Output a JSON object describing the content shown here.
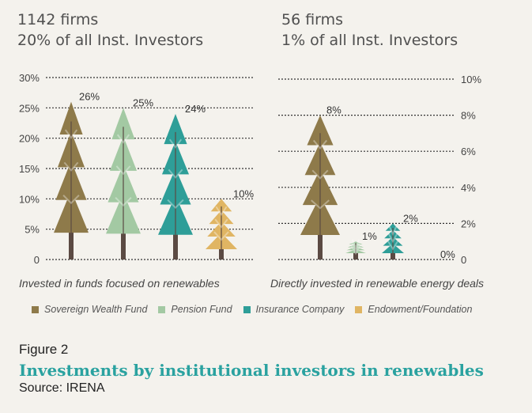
{
  "headers": {
    "left": {
      "line1": "1142 firms",
      "line2": "20% of all Inst. Investors"
    },
    "right": {
      "line1": "56 firms",
      "line2": "1% of all Inst. Investors"
    }
  },
  "chart_data": [
    {
      "type": "bar",
      "xlabel": "Invested in funds focused on renewables",
      "ylim": [
        0,
        30
      ],
      "yticks": [
        "0",
        "5%",
        "10%",
        "15%",
        "20%",
        "25%",
        "30%"
      ],
      "categories": [
        "Sovereign Wealth Fund",
        "Pension Fund",
        "Insurance Company",
        "Endowment/Foundation"
      ],
      "values": [
        26,
        25,
        24,
        10
      ],
      "data_labels": [
        "26%",
        "25%",
        "24%",
        "10%"
      ]
    },
    {
      "type": "bar",
      "xlabel": "Directly invested in renewable energy deals",
      "ylim": [
        0,
        10
      ],
      "yticks": [
        "0",
        "2%",
        "4%",
        "6%",
        "8%",
        "10%"
      ],
      "categories": [
        "Sovereign Wealth Fund",
        "Pension Fund",
        "Insurance Company",
        "Endowment/Foundation"
      ],
      "values": [
        8,
        1,
        2,
        0
      ],
      "data_labels": [
        "8%",
        "1%",
        "2%",
        "0%"
      ]
    }
  ],
  "legend": [
    {
      "label": "Sovereign Wealth Fund",
      "color": "#8e7a4a"
    },
    {
      "label": "Pension Fund",
      "color": "#a3c9a3"
    },
    {
      "label": "Insurance Company",
      "color": "#2e9e98"
    },
    {
      "label": "Endowment/Foundation",
      "color": "#e0b563"
    }
  ],
  "colors": {
    "trunk": "#5b4a43",
    "grid": "#333333",
    "title": "#2aa2a0"
  },
  "figure": {
    "label": "Figure 2",
    "title": "Investments by institutional investors in renewables",
    "source": "Source: IRENA"
  }
}
